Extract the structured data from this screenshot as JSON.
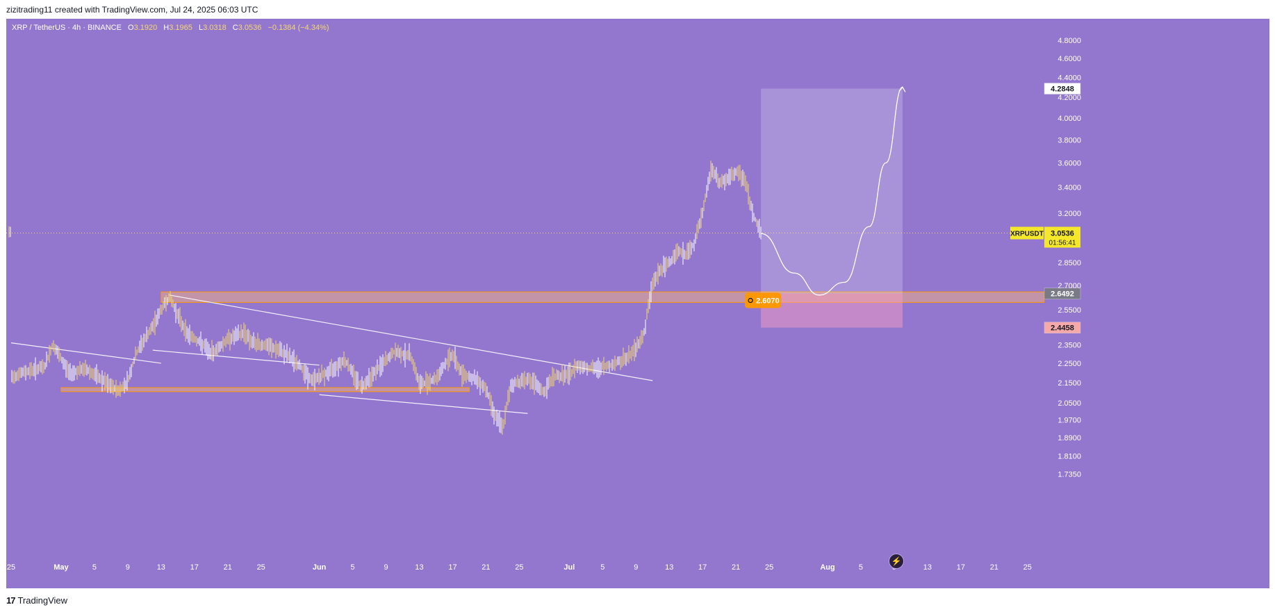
{
  "header": {
    "credit": "zizitrading11 created with TradingView.com, Jul 24, 2025 06:03 UTC"
  },
  "legend": {
    "symbol": "XRP / TetherUS · 4h · BINANCE",
    "open_label": "O",
    "open": "3.1920",
    "high_label": "H",
    "high": "3.1965",
    "low_label": "L",
    "low": "3.0318",
    "close_label": "C",
    "close": "3.0536",
    "change": "−0.1384 (−4.34%)"
  },
  "footer": {
    "brand": "TradingView",
    "logo_text": "17"
  },
  "chart_data": {
    "type": "candlestick",
    "symbol": "XRPUSDT",
    "timeframe": "4h",
    "y_scale": "log",
    "ylim": [
      1.7,
      4.95
    ],
    "y_ticks": [
      "4.8000",
      "4.6000",
      "4.4000",
      "4.2000",
      "4.0000",
      "3.8000",
      "3.6000",
      "3.4000",
      "3.2000",
      "2.8500",
      "2.7000",
      "2.5500",
      "2.3500",
      "2.2500",
      "2.1500",
      "2.0500",
      "1.9700",
      "1.8900",
      "1.8100",
      "1.7350"
    ],
    "x_ticks": [
      {
        "label": "25",
        "date": "2025-04-25"
      },
      {
        "label": "May",
        "date": "2025-05-01"
      },
      {
        "label": "5",
        "date": "2025-05-05"
      },
      {
        "label": "9",
        "date": "2025-05-09"
      },
      {
        "label": "13",
        "date": "2025-05-13"
      },
      {
        "label": "17",
        "date": "2025-05-17"
      },
      {
        "label": "21",
        "date": "2025-05-21"
      },
      {
        "label": "25",
        "date": "2025-05-25"
      },
      {
        "label": "Jun",
        "date": "2025-06-01"
      },
      {
        "label": "5",
        "date": "2025-06-05"
      },
      {
        "label": "9",
        "date": "2025-06-09"
      },
      {
        "label": "13",
        "date": "2025-06-13"
      },
      {
        "label": "17",
        "date": "2025-06-17"
      },
      {
        "label": "21",
        "date": "2025-06-21"
      },
      {
        "label": "25",
        "date": "2025-06-25"
      },
      {
        "label": "Jul",
        "date": "2025-07-01"
      },
      {
        "label": "5",
        "date": "2025-07-05"
      },
      {
        "label": "9",
        "date": "2025-07-09"
      },
      {
        "label": "13",
        "date": "2025-07-13"
      },
      {
        "label": "17",
        "date": "2025-07-17"
      },
      {
        "label": "21",
        "date": "2025-07-21"
      },
      {
        "label": "25",
        "date": "2025-07-25"
      },
      {
        "label": "Aug",
        "date": "2025-08-01"
      },
      {
        "label": "5",
        "date": "2025-08-05"
      },
      {
        "label": "9",
        "date": "2025-08-09"
      },
      {
        "label": "13",
        "date": "2025-08-13"
      },
      {
        "label": "17",
        "date": "2025-08-17"
      },
      {
        "label": "21",
        "date": "2025-08-21"
      },
      {
        "label": "25",
        "date": "2025-08-25"
      }
    ],
    "price_path": [
      [
        "2025-04-25",
        2.18
      ],
      [
        "2025-04-27",
        2.21
      ],
      [
        "2025-04-29",
        2.23
      ],
      [
        "2025-04-30",
        2.35
      ],
      [
        "2025-05-01",
        2.27
      ],
      [
        "2025-05-02",
        2.2
      ],
      [
        "2025-05-04",
        2.22
      ],
      [
        "2025-05-05",
        2.19
      ],
      [
        "2025-05-07",
        2.13
      ],
      [
        "2025-05-08",
        2.11
      ],
      [
        "2025-05-09",
        2.16
      ],
      [
        "2025-05-10",
        2.3
      ],
      [
        "2025-05-11",
        2.38
      ],
      [
        "2025-05-12",
        2.45
      ],
      [
        "2025-05-13",
        2.55
      ],
      [
        "2025-05-14",
        2.63
      ],
      [
        "2025-05-15",
        2.52
      ],
      [
        "2025-05-16",
        2.42
      ],
      [
        "2025-05-18",
        2.35
      ],
      [
        "2025-05-19",
        2.3
      ],
      [
        "2025-05-21",
        2.38
      ],
      [
        "2025-05-23",
        2.42
      ],
      [
        "2025-05-24",
        2.36
      ],
      [
        "2025-05-26",
        2.34
      ],
      [
        "2025-05-28",
        2.3
      ],
      [
        "2025-05-30",
        2.22
      ],
      [
        "2025-05-31",
        2.16
      ],
      [
        "2025-06-02",
        2.2
      ],
      [
        "2025-06-04",
        2.27
      ],
      [
        "2025-06-05",
        2.2
      ],
      [
        "2025-06-06",
        2.13
      ],
      [
        "2025-06-08",
        2.22
      ],
      [
        "2025-06-10",
        2.31
      ],
      [
        "2025-06-12",
        2.29
      ],
      [
        "2025-06-13",
        2.14
      ],
      [
        "2025-06-15",
        2.17
      ],
      [
        "2025-06-16",
        2.24
      ],
      [
        "2025-06-17",
        2.3
      ],
      [
        "2025-06-18",
        2.2
      ],
      [
        "2025-06-20",
        2.16
      ],
      [
        "2025-06-21",
        2.12
      ],
      [
        "2025-06-22",
        2.0
      ],
      [
        "2025-06-23",
        1.93
      ],
      [
        "2025-06-24",
        2.14
      ],
      [
        "2025-06-26",
        2.17
      ],
      [
        "2025-06-28",
        2.1
      ],
      [
        "2025-06-29",
        2.18
      ],
      [
        "2025-07-01",
        2.19
      ],
      [
        "2025-07-02",
        2.24
      ],
      [
        "2025-07-04",
        2.22
      ],
      [
        "2025-07-06",
        2.24
      ],
      [
        "2025-07-08",
        2.28
      ],
      [
        "2025-07-09",
        2.33
      ],
      [
        "2025-07-10",
        2.42
      ],
      [
        "2025-07-11",
        2.72
      ],
      [
        "2025-07-12",
        2.8
      ],
      [
        "2025-07-13",
        2.85
      ],
      [
        "2025-07-14",
        2.93
      ],
      [
        "2025-07-15",
        2.9
      ],
      [
        "2025-07-16",
        2.98
      ],
      [
        "2025-07-17",
        3.2
      ],
      [
        "2025-07-18",
        3.55
      ],
      [
        "2025-07-19",
        3.44
      ],
      [
        "2025-07-20",
        3.46
      ],
      [
        "2025-07-21",
        3.52
      ],
      [
        "2025-07-22",
        3.48
      ],
      [
        "2025-07-23",
        3.2
      ],
      [
        "2025-07-24",
        3.0536
      ]
    ],
    "trendlines": [
      {
        "from": [
          "2025-04-25",
          2.36
        ],
        "to": [
          "2025-05-13",
          2.25
        ]
      },
      {
        "from": [
          "2025-05-14",
          2.64
        ],
        "to": [
          "2025-07-11",
          2.16
        ]
      },
      {
        "from": [
          "2025-05-12",
          2.32
        ],
        "to": [
          "2025-06-01",
          2.24
        ]
      },
      {
        "from": [
          "2025-06-01",
          2.09
        ],
        "to": [
          "2025-06-26",
          2.0
        ]
      }
    ],
    "zones": [
      {
        "name": "upper-supply-zone",
        "x0": "2025-05-13",
        "x1": "2025-08-27",
        "y0": 2.595,
        "y1": 2.66
      },
      {
        "name": "lower-support-zone",
        "x0": "2025-05-01",
        "x1": "2025-06-19",
        "y0": 2.105,
        "y1": 2.125
      }
    ],
    "position": {
      "x0": "2025-07-24",
      "x1": "2025-08-10",
      "entry": 2.6492,
      "target": 4.2848,
      "stop": 2.4458
    },
    "projection": {
      "points": [
        [
          "2025-07-24",
          3.05
        ],
        [
          "2025-07-28",
          2.78
        ],
        [
          "2025-07-31",
          2.64
        ],
        [
          "2025-08-03",
          2.72
        ],
        [
          "2025-08-06",
          3.1
        ],
        [
          "2025-08-08",
          3.6
        ],
        [
          "2025-08-10",
          4.3
        ]
      ]
    },
    "price_labels": [
      {
        "name": "target",
        "text": "4.2848",
        "value": 4.2848,
        "color": "#ffffff",
        "text_color": "#131722"
      },
      {
        "name": "entry",
        "text": "2.6492",
        "value": 2.6492,
        "color": "#787b86",
        "text_color": "#ffffff"
      },
      {
        "name": "stop",
        "text": "2.4458",
        "value": 2.4458,
        "color": "#f7a8a8",
        "text_color": "#131722"
      }
    ],
    "current": {
      "symbol": "XRPUSDT",
      "price": "3.0536",
      "countdown": "01:56:41",
      "value": 3.0536,
      "color": "#f5e72a"
    },
    "alert_marker": {
      "text": "2.6070",
      "value": 2.607,
      "date": "2025-07-23",
      "color": "#ff9800"
    }
  }
}
